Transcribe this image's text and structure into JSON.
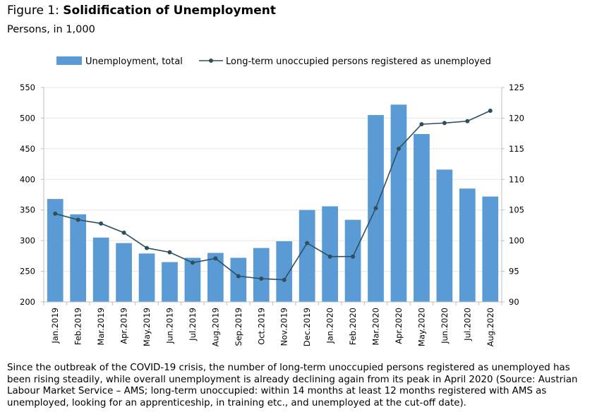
{
  "header": {
    "title_prefix": "Figure 1: ",
    "title_main": "Solidification of Unemployment",
    "subtitle": "Persons, in 1,000"
  },
  "caption": "Since the outbreak of the COVID-19 crisis, the number of long-term unoccupied persons registered as unemployed has been rising steadily, while overall unemployment is already declining again from its peak in April 2020 (Source: Austrian Labour Market Service – AMS; long-term unoccupied: within 14 months at least 12 months registered with AMS as unemployed, looking for an apprenticeship, in training etc., and unemployed at the cut-off date).",
  "colors": {
    "bars": "#5B9BD5",
    "line": "#2F4F5F",
    "grid": "#E6E6E6",
    "axis": "#BFBFBF"
  },
  "chart_data": {
    "type": "bar+line",
    "categories": [
      "Jan.2019",
      "Feb.2019",
      "Mar.2019",
      "Apr.2019",
      "May.2019",
      "Jun.2019",
      "Jul.2019",
      "Aug.2019",
      "Sep.2019",
      "Oct.2019",
      "Nov.2019",
      "Dec.2019",
      "Jan.2020",
      "Feb.2020",
      "Mar.2020",
      "Apr.2020",
      "May.2020",
      "Jun.2020",
      "Jul.2020",
      "Aug.2020"
    ],
    "series": [
      {
        "name": "Unemployment, total",
        "type": "bar",
        "axis": "left",
        "values": [
          368,
          343,
          305,
          296,
          279,
          265,
          272,
          280,
          272,
          288,
          299,
          350,
          356,
          334,
          505,
          522,
          474,
          416,
          385,
          372
        ]
      },
      {
        "name": "Long-term unoccupied persons registered as unemployed",
        "type": "line",
        "axis": "right",
        "values": [
          104.4,
          103.4,
          102.8,
          101.3,
          98.8,
          98.1,
          96.4,
          97.1,
          94.2,
          93.8,
          93.6,
          99.6,
          97.4,
          97.4,
          105.3,
          115.0,
          119.0,
          119.2,
          119.5,
          121.2
        ]
      }
    ],
    "y_left": {
      "min": 200,
      "max": 550,
      "ticks": [
        200,
        250,
        300,
        350,
        400,
        450,
        500,
        550
      ]
    },
    "y_right": {
      "min": 90,
      "max": 125,
      "ticks": [
        90,
        95,
        100,
        105,
        110,
        115,
        120,
        125
      ]
    },
    "grid": true,
    "legend": "top"
  }
}
